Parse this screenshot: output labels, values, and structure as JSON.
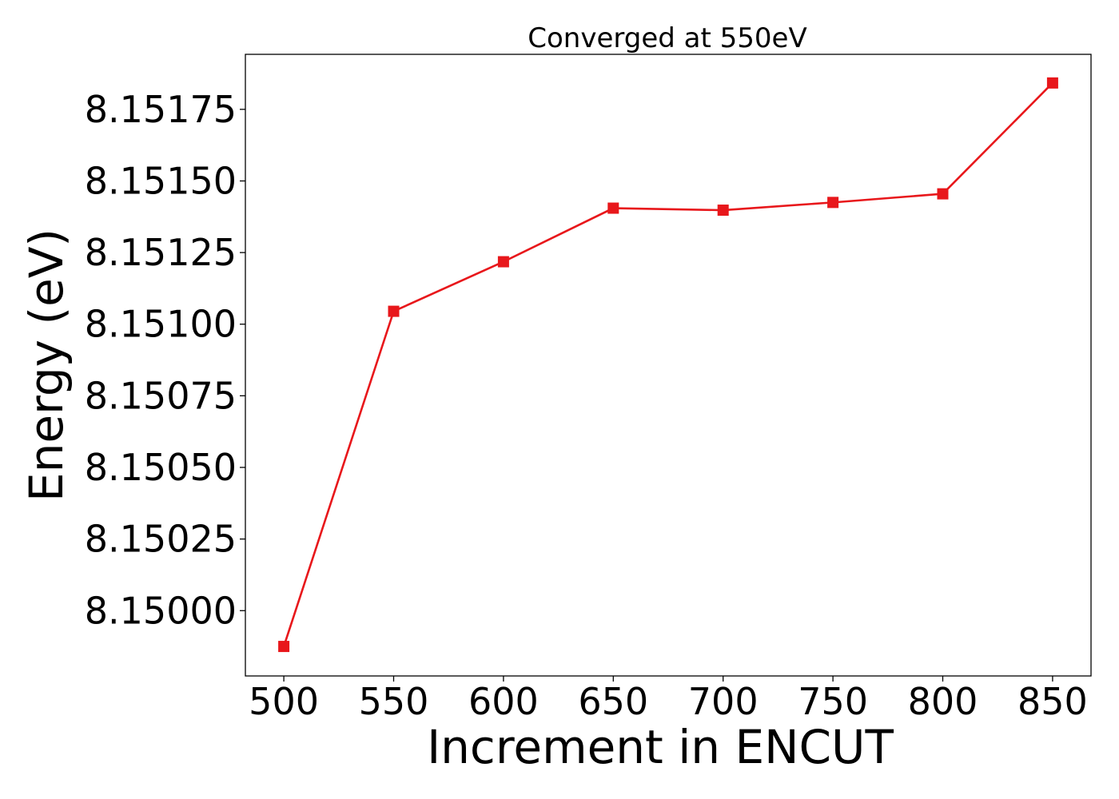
{
  "chart_data": {
    "type": "line",
    "title": "Converged at 550eV",
    "xlabel": "Increment in ENCUT",
    "ylabel": "Energy (eV)",
    "x": [
      500,
      550,
      600,
      650,
      700,
      750,
      800,
      850
    ],
    "series": [
      {
        "values": [
          8.149875,
          8.151045,
          8.151218,
          8.151405,
          8.151398,
          8.151425,
          8.151455,
          8.151842
        ],
        "color": "#e8171b",
        "marker": "square"
      }
    ],
    "xticks": [
      500,
      550,
      600,
      650,
      700,
      750,
      800,
      850
    ],
    "xtick_labels": [
      "500",
      "550",
      "600",
      "650",
      "700",
      "750",
      "800",
      "850"
    ],
    "yticks": [
      8.15,
      8.15025,
      8.1505,
      8.15075,
      8.151,
      8.15125,
      8.1515,
      8.15175
    ],
    "ytick_labels": [
      "8.15000",
      "8.15025",
      "8.15050",
      "8.15075",
      "8.15100",
      "8.15125",
      "8.15150",
      "8.15175"
    ],
    "xlim": [
      482.5,
      867.5
    ],
    "ylim": [
      8.149772,
      8.151942
    ],
    "grid": false,
    "legend": "none"
  }
}
